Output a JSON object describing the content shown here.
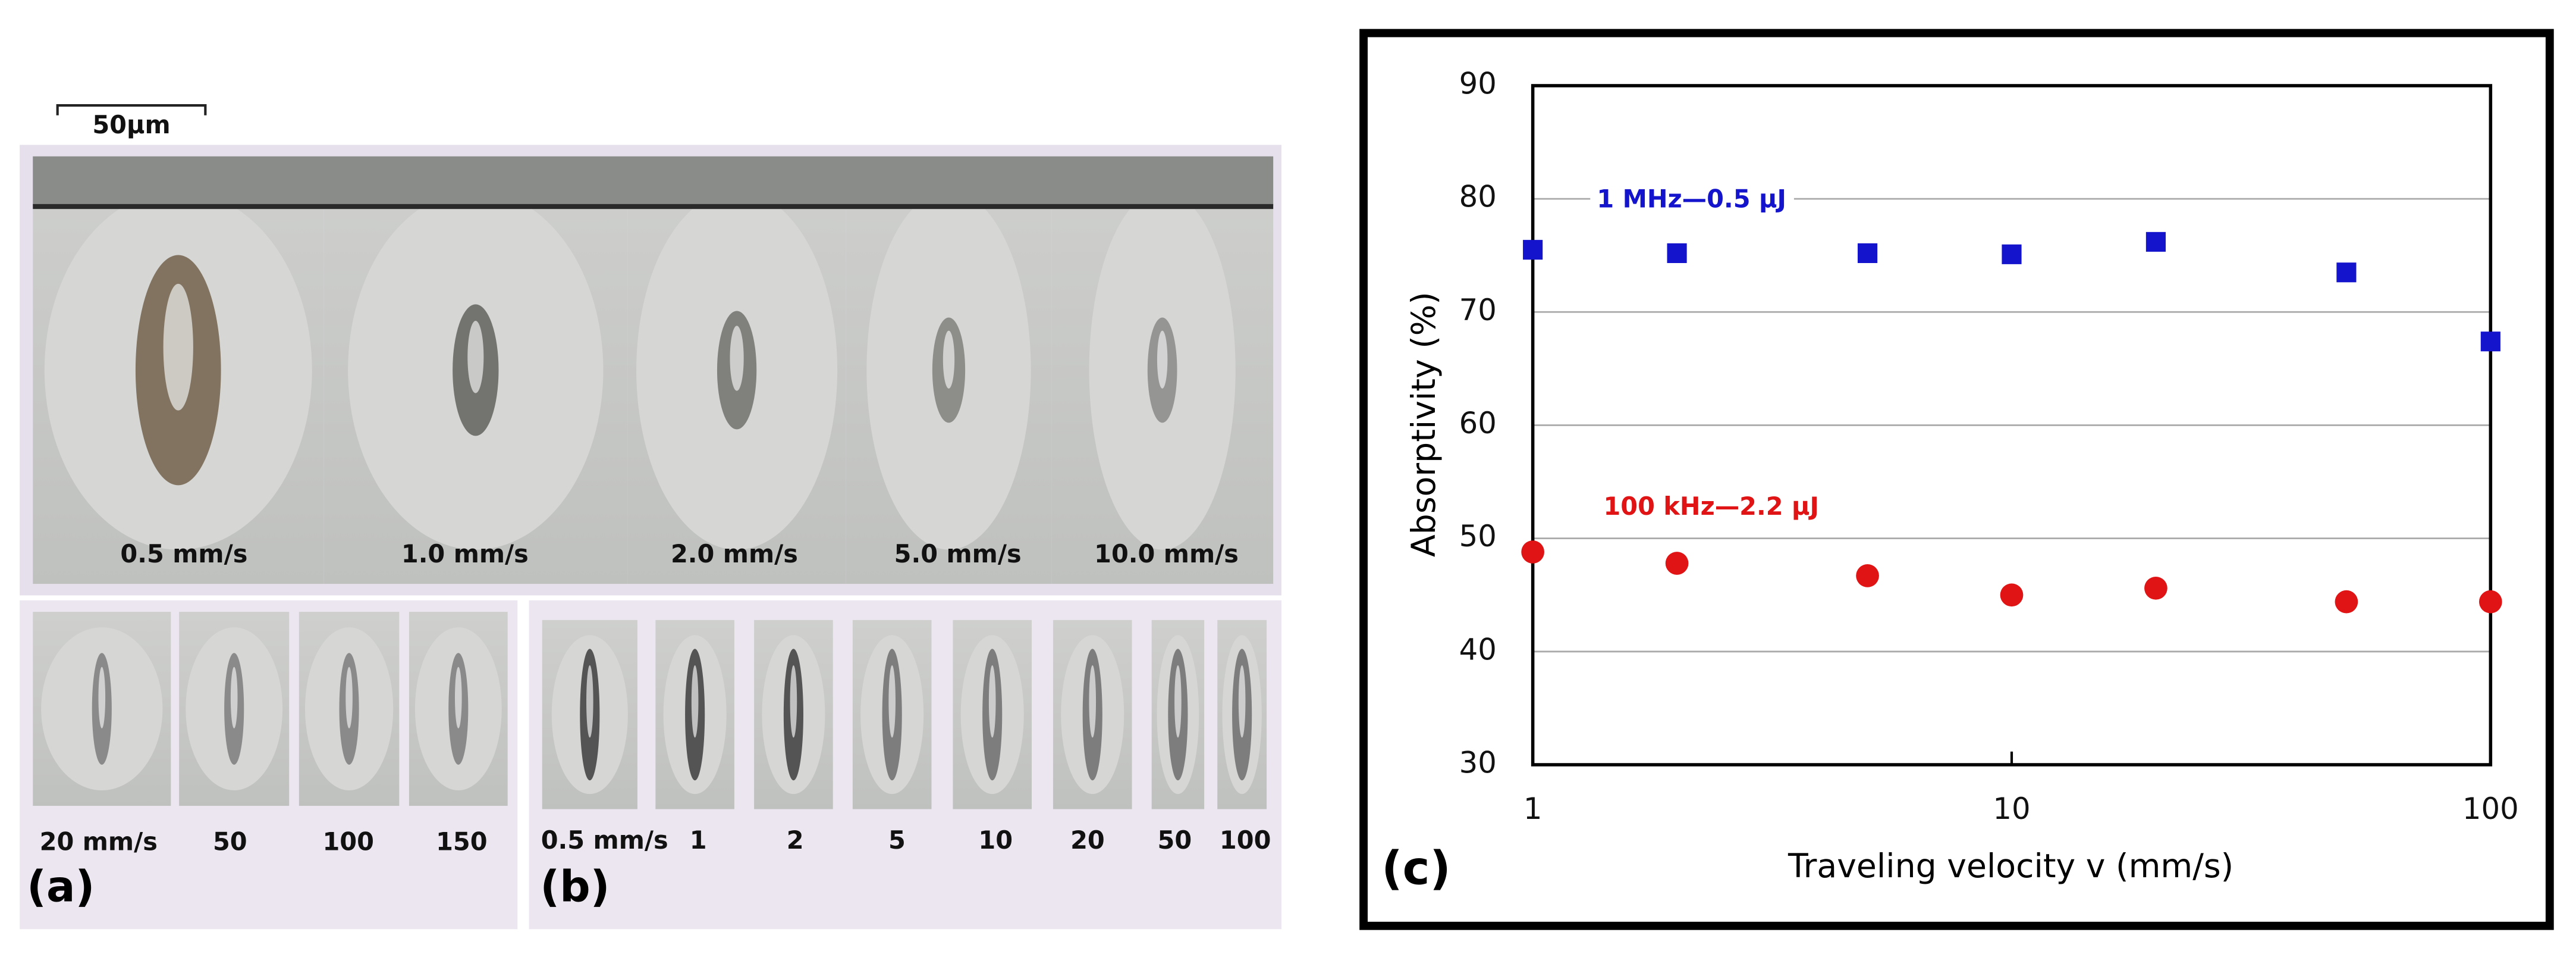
{
  "panels": {
    "scale_bar": "50μm",
    "a": {
      "label": "(a)",
      "top_images": [
        "0.5 mm/s",
        "1.0 mm/s",
        "2.0 mm/s",
        "5.0 mm/s",
        "10.0 mm/s"
      ],
      "bottom_images": [
        "20 mm/s",
        "50",
        "100",
        "150"
      ]
    },
    "b": {
      "label": "(b)",
      "images": [
        "0.5 mm/s",
        "1",
        "2",
        "5",
        "10",
        "20",
        "50",
        "100"
      ]
    }
  },
  "chart_data": {
    "type": "scatter",
    "panel_label": "(c)",
    "x_label": "Traveling velocity v (mm/s)",
    "y_label": "Absorptivity (%)",
    "x_log": true,
    "xlim": [
      1,
      100
    ],
    "xticks": [
      1,
      10,
      100
    ],
    "ylim": [
      30,
      90
    ],
    "yticks": [
      30,
      40,
      50,
      60,
      70,
      80,
      90
    ],
    "grid": true,
    "x": [
      1,
      2,
      5,
      10,
      20,
      50,
      100
    ],
    "series": [
      {
        "name": "1 MHz—0.5 μJ",
        "color": "#1414cc",
        "marker": "square",
        "values": [
          75.5,
          75.2,
          75.2,
          75.1,
          76.2,
          73.5,
          67.4
        ]
      },
      {
        "name": "100 kHz—2.2 μJ",
        "color": "#e01414",
        "marker": "circle",
        "values": [
          48.8,
          47.8,
          46.7,
          45.0,
          45.6,
          44.4,
          44.4
        ]
      }
    ]
  }
}
